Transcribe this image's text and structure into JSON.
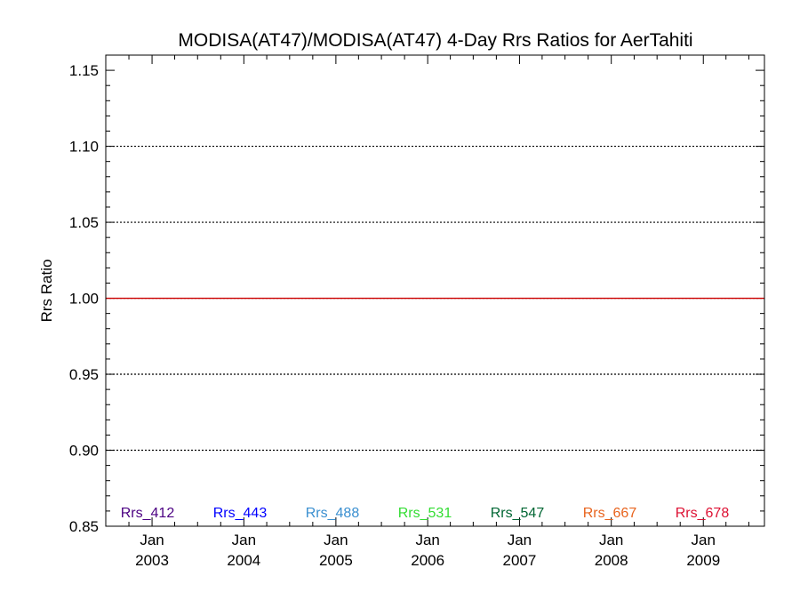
{
  "chart_data": {
    "type": "line",
    "title": "MODISA(AT47)/MODISA(AT47) 4-Day Rrs Ratios for AerTahiti",
    "xlabel": "",
    "ylabel": "Rrs Ratio",
    "ylim": [
      0.85,
      1.16
    ],
    "xlim": [
      "2002-07-01",
      "2009-09-01"
    ],
    "y_ticks": [
      "0.85",
      "0.90",
      "0.95",
      "1.00",
      "1.05",
      "1.10",
      "1.15"
    ],
    "x_ticks": [
      {
        "month": "Jan",
        "year": "2003",
        "date": "2003-01-01"
      },
      {
        "month": "Jan",
        "year": "2004",
        "date": "2004-01-01"
      },
      {
        "month": "Jan",
        "year": "2005",
        "date": "2005-01-01"
      },
      {
        "month": "Jan",
        "year": "2006",
        "date": "2006-01-01"
      },
      {
        "month": "Jan",
        "year": "2007",
        "date": "2007-01-01"
      },
      {
        "month": "Jan",
        "year": "2008",
        "date": "2008-01-01"
      },
      {
        "month": "Jan",
        "year": "2009",
        "date": "2009-01-01"
      }
    ],
    "grid": true,
    "grid_lines_at": [
      0.9,
      0.95,
      1.0,
      1.05,
      1.1
    ],
    "reference_line": {
      "y": 1.0,
      "color": "#cc0000"
    },
    "legend_placement": "bottom",
    "series": [
      {
        "name": "Rrs_412",
        "color": "#4b0082",
        "values": []
      },
      {
        "name": "Rrs_443",
        "color": "#0000ff",
        "values": []
      },
      {
        "name": "Rrs_488",
        "color": "#3a8fd0",
        "values": []
      },
      {
        "name": "Rrs_531",
        "color": "#33dd33",
        "values": []
      },
      {
        "name": "Rrs_547",
        "color": "#006633",
        "values": []
      },
      {
        "name": "Rrs_667",
        "color": "#e8641e",
        "values": []
      },
      {
        "name": "Rrs_678",
        "color": "#dd1133",
        "values": []
      }
    ]
  }
}
